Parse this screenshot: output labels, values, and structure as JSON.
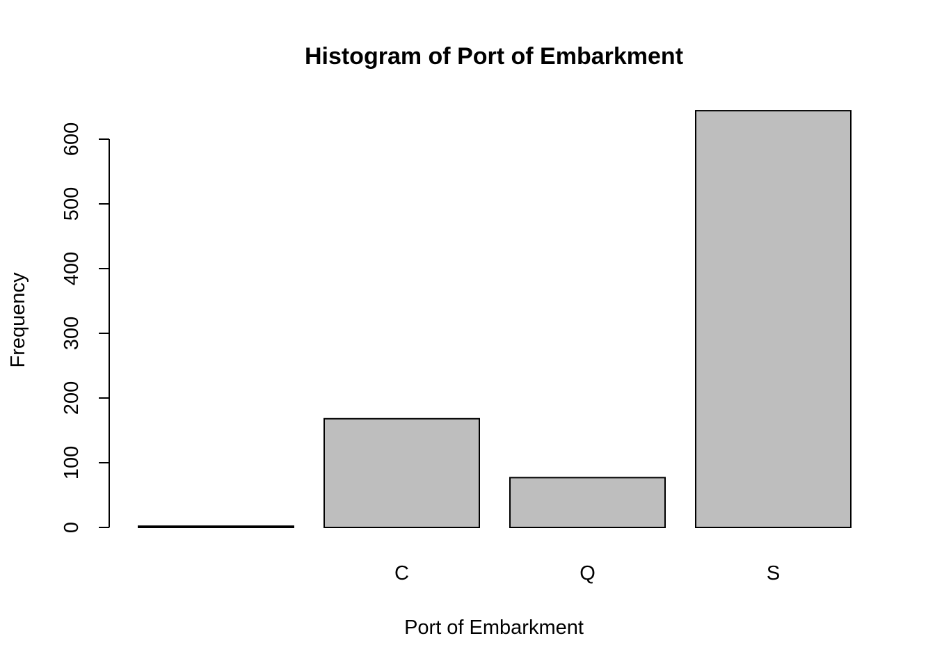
{
  "chart_data": {
    "type": "bar",
    "title": "Histogram of Port of Embarkment",
    "xlabel": "Port of Embarkment",
    "ylabel": "Frequency",
    "categories": [
      "",
      "C",
      "Q",
      "S"
    ],
    "values": [
      2,
      168,
      77,
      644
    ],
    "ylim": [
      0,
      644
    ],
    "yticks": [
      0,
      100,
      200,
      300,
      400,
      500,
      600
    ],
    "grid": false,
    "colors": {
      "bar_fill": "#bebebe",
      "bar_stroke": "#000000"
    }
  }
}
